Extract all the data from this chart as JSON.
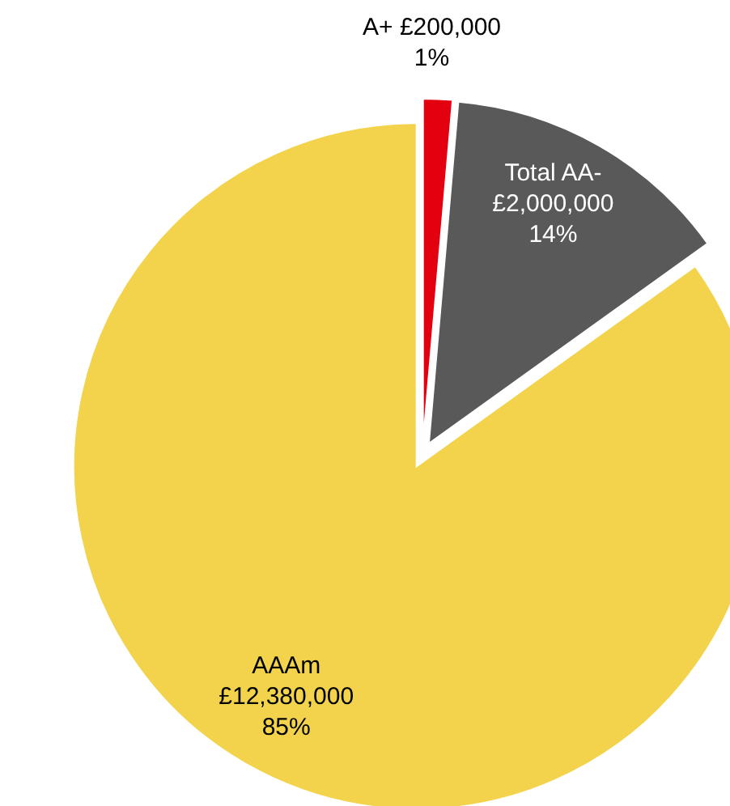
{
  "chart_data": {
    "type": "pie",
    "categories": [
      "A+",
      "Total AA-",
      "AAAm"
    ],
    "values": [
      200000,
      2000000,
      12380000
    ],
    "colors": [
      "#e3000f",
      "#595959",
      "#f2d34b"
    ],
    "value_labels": [
      "£200,000\n1%",
      "£2,000,000\n14%",
      "£12,380,000\n85%"
    ]
  }
}
